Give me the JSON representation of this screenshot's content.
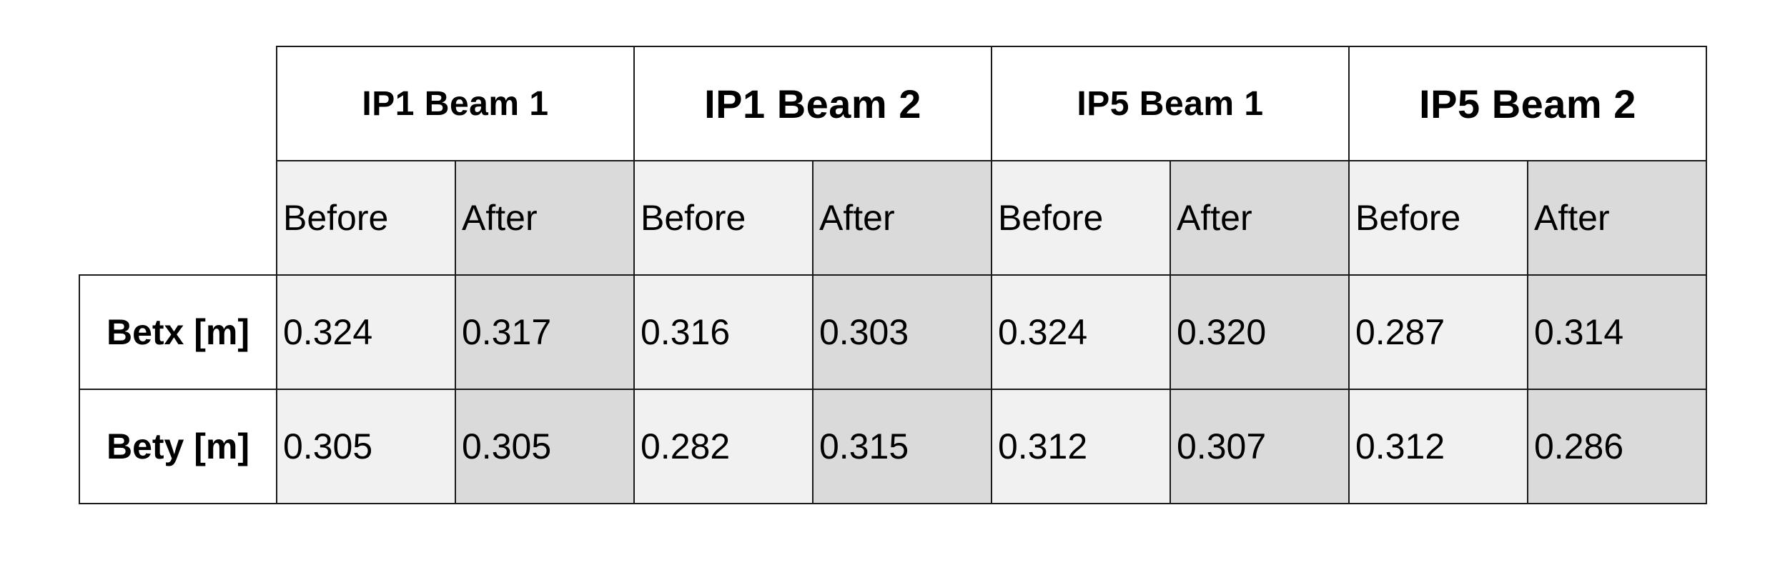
{
  "table": {
    "groups": [
      "IP1 Beam 1",
      "IP1 Beam 2",
      "IP5 Beam 1",
      "IP5 Beam 2"
    ],
    "subheaders": [
      "Before",
      "After"
    ],
    "rows": [
      {
        "label": "Betx [m]",
        "values": [
          "0.324",
          "0.317",
          "0.316",
          "0.303",
          "0.324",
          "0.320",
          "0.287",
          "0.314"
        ]
      },
      {
        "label": "Bety [m]",
        "values": [
          "0.305",
          "0.305",
          "0.282",
          "0.315",
          "0.312",
          "0.307",
          "0.312",
          "0.286"
        ]
      }
    ],
    "colors": {
      "before_bg": "#f1f1f1",
      "after_bg": "#dadada",
      "border": "#1a1a1a"
    }
  }
}
